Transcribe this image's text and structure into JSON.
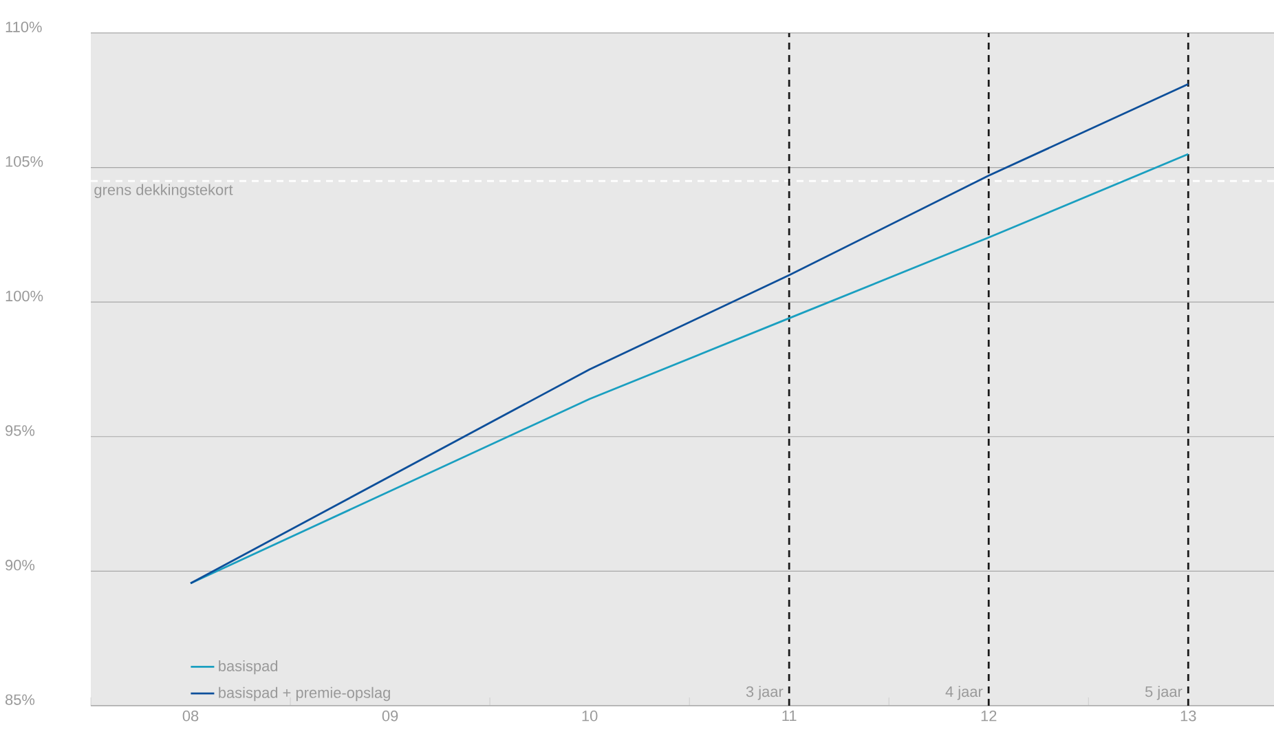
{
  "chart_data": {
    "type": "line",
    "x": [
      8,
      10,
      11,
      12,
      13
    ],
    "series": [
      {
        "name": "basispad",
        "color": "#1a9fc0",
        "values": [
          89.55,
          96.4,
          99.4,
          102.4,
          105.5
        ]
      },
      {
        "name": "basispad + premie-opslag",
        "color": "#0d4f9a",
        "values": [
          89.55,
          97.5,
          101.0,
          104.7,
          108.1
        ]
      }
    ],
    "xlim": [
      7.5,
      13.43
    ],
    "ylim": [
      85,
      110
    ],
    "xticks": [
      {
        "value": 7.5,
        "label": null
      },
      {
        "value": 8,
        "label": "08"
      },
      {
        "value": 8.5,
        "label": null
      },
      {
        "value": 9,
        "label": "09"
      },
      {
        "value": 9.5,
        "label": null
      },
      {
        "value": 10,
        "label": "10"
      },
      {
        "value": 10.5,
        "label": null
      },
      {
        "value": 11,
        "label": "11"
      },
      {
        "value": 11.5,
        "label": null
      },
      {
        "value": 12,
        "label": "12"
      },
      {
        "value": 12.5,
        "label": null
      },
      {
        "value": 13,
        "label": "13"
      }
    ],
    "yticks": [
      {
        "value": 85,
        "label": "85%"
      },
      {
        "value": 90,
        "label": "90%"
      },
      {
        "value": 95,
        "label": "95%"
      },
      {
        "value": 100,
        "label": "100%"
      },
      {
        "value": 105,
        "label": "105%"
      },
      {
        "value": 110,
        "label": "110%"
      }
    ],
    "grid": "y",
    "legend": "bottom left",
    "line_style": "solid",
    "marker": "none",
    "ref_lines": [
      {
        "axis": "y",
        "value": 104.5,
        "label": "grens dekkingstekort",
        "color": "#ffffff",
        "line_style": "dashed"
      },
      {
        "axis": "x",
        "value": 11,
        "label": "3 jaar",
        "color": "#1a1a1a",
        "line_style": "dashed"
      },
      {
        "axis": "x",
        "value": 12,
        "label": "4 jaar",
        "color": "#1a1a1a",
        "line_style": "dashed"
      },
      {
        "axis": "x",
        "value": 13,
        "label": "5 jaar",
        "color": "#1a1a1a",
        "line_style": "dashed"
      }
    ]
  }
}
